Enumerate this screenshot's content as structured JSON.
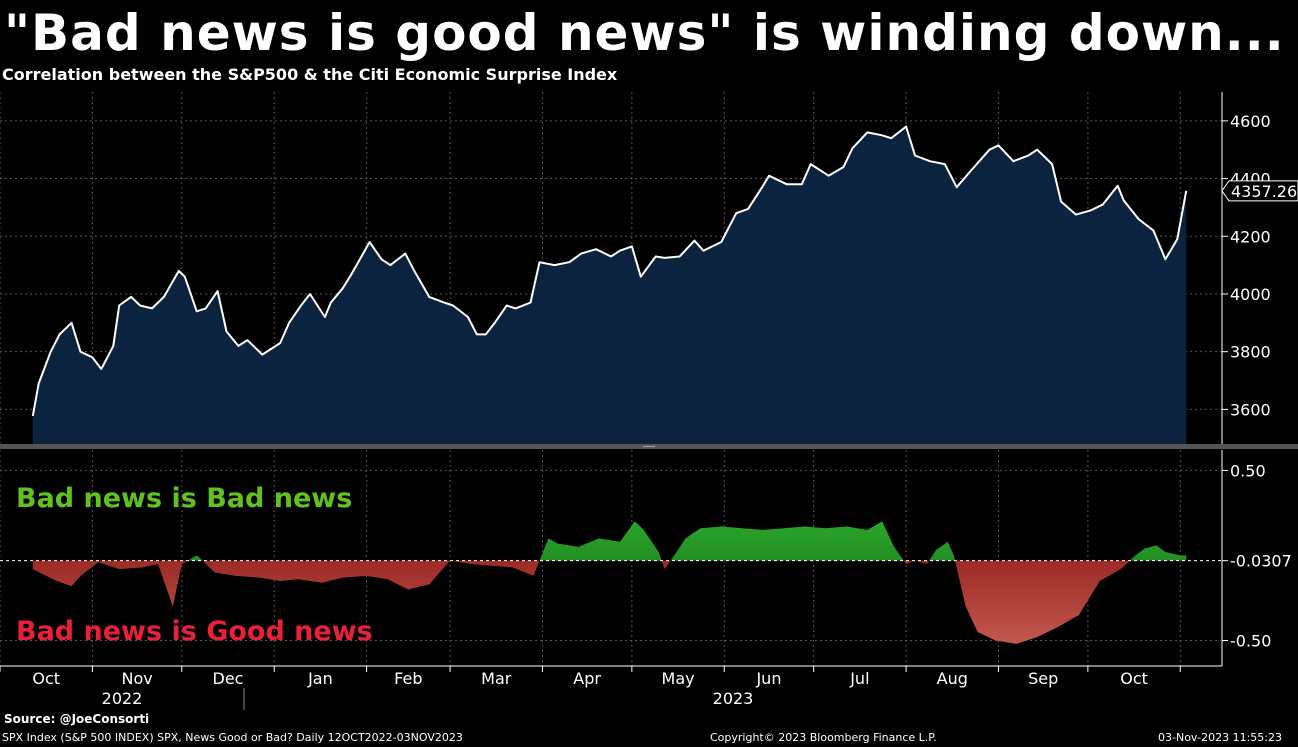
{
  "header": {
    "title": "\"Bad news is good news\" is winding down...",
    "subtitle": "Correlation between the S&P500 & the Citi Economic Surprise Index"
  },
  "footer": {
    "source": "Source: @JoeConsorti",
    "info_left": "SPX Index (S&P 500 INDEX) SPX, News Good or Bad?  Daily 12OCT2022-03NOV2023",
    "copyright": "Copyright© 2023 Bloomberg Finance L.P.",
    "timestamp": "03-Nov-2023 11:55:23"
  },
  "colors": {
    "background": "#000000",
    "area_fill": "#0c2340",
    "line": "#ffffff",
    "positive": "#1e8a1e",
    "negative": "#9a1a14",
    "bad_bad_label": "#5fc21e",
    "bad_good_label": "#e8203a"
  },
  "chart_data": [
    {
      "type": "area",
      "title": "Correlation between the S&P500 & the Citi Economic Surprise Index",
      "series": [
        {
          "name": "SPX",
          "x": [
            "2022-10-12",
            "2022-10-14",
            "2022-10-18",
            "2022-10-21",
            "2022-10-25",
            "2022-10-28",
            "2022-11-01",
            "2022-11-04",
            "2022-11-08",
            "2022-11-10",
            "2022-11-14",
            "2022-11-17",
            "2022-11-21",
            "2022-11-25",
            "2022-11-30",
            "2022-12-02",
            "2022-12-06",
            "2022-12-09",
            "2022-12-13",
            "2022-12-16",
            "2022-12-20",
            "2022-12-23",
            "2022-12-28",
            "2023-01-03",
            "2023-01-06",
            "2023-01-10",
            "2023-01-13",
            "2023-01-18",
            "2023-01-20",
            "2023-01-24",
            "2023-01-27",
            "2023-02-02",
            "2023-02-06",
            "2023-02-09",
            "2023-02-14",
            "2023-02-17",
            "2023-02-22",
            "2023-02-27",
            "2023-03-02",
            "2023-03-07",
            "2023-03-10",
            "2023-03-13",
            "2023-03-16",
            "2023-03-20",
            "2023-03-23",
            "2023-03-28",
            "2023-03-31",
            "2023-04-05",
            "2023-04-10",
            "2023-04-14",
            "2023-04-19",
            "2023-04-24",
            "2023-04-27",
            "2023-05-01",
            "2023-05-04",
            "2023-05-09",
            "2023-05-12",
            "2023-05-17",
            "2023-05-22",
            "2023-05-25",
            "2023-05-31",
            "2023-06-05",
            "2023-06-09",
            "2023-06-14",
            "2023-06-16",
            "2023-06-22",
            "2023-06-27",
            "2023-06-30",
            "2023-07-06",
            "2023-07-11",
            "2023-07-14",
            "2023-07-19",
            "2023-07-24",
            "2023-07-27",
            "2023-08-01",
            "2023-08-04",
            "2023-08-09",
            "2023-08-14",
            "2023-08-18",
            "2023-08-23",
            "2023-08-29",
            "2023-09-01",
            "2023-09-06",
            "2023-09-11",
            "2023-09-14",
            "2023-09-19",
            "2023-09-22",
            "2023-09-27",
            "2023-10-02",
            "2023-10-06",
            "2023-10-11",
            "2023-10-13",
            "2023-10-18",
            "2023-10-23",
            "2023-10-27",
            "2023-10-31",
            "2023-11-03"
          ],
          "values": [
            3577,
            3690,
            3800,
            3860,
            3900,
            3800,
            3780,
            3740,
            3820,
            3960,
            3990,
            3960,
            3950,
            3990,
            4080,
            4060,
            3940,
            3950,
            4010,
            3870,
            3820,
            3840,
            3790,
            3830,
            3900,
            3960,
            4000,
            3920,
            3970,
            4020,
            4070,
            4180,
            4120,
            4100,
            4140,
            4080,
            3990,
            3970,
            3960,
            3920,
            3860,
            3860,
            3900,
            3960,
            3950,
            3970,
            4110,
            4100,
            4110,
            4140,
            4155,
            4130,
            4150,
            4165,
            4060,
            4130,
            4125,
            4130,
            4185,
            4150,
            4180,
            4280,
            4295,
            4375,
            4410,
            4380,
            4380,
            4450,
            4410,
            4440,
            4505,
            4560,
            4550,
            4540,
            4580,
            4480,
            4460,
            4450,
            4370,
            4430,
            4500,
            4515,
            4460,
            4480,
            4500,
            4450,
            4320,
            4275,
            4290,
            4310,
            4375,
            4325,
            4260,
            4220,
            4120,
            4190,
            4357.26
          ]
        }
      ],
      "yticks": [
        3600,
        3800,
        4000,
        4200,
        4400,
        4600
      ],
      "ylim": [
        3480,
        4700
      ],
      "last_value_label": "4357.26",
      "grid": true
    },
    {
      "type": "area",
      "series": [
        {
          "name": "News Good or Bad?",
          "x": [
            "2022-10-12",
            "2022-10-20",
            "2022-10-25",
            "2022-10-28",
            "2022-11-03",
            "2022-11-10",
            "2022-11-18",
            "2022-11-23",
            "2022-11-28",
            "2022-12-01",
            "2022-12-06",
            "2022-12-08",
            "2022-12-12",
            "2022-12-19",
            "2022-12-27",
            "2023-01-03",
            "2023-01-09",
            "2023-01-17",
            "2023-01-24",
            "2023-02-01",
            "2023-02-08",
            "2023-02-15",
            "2023-02-22",
            "2023-03-01",
            "2023-03-08",
            "2023-03-15",
            "2023-03-22",
            "2023-03-29",
            "2023-04-03",
            "2023-04-06",
            "2023-04-13",
            "2023-04-20",
            "2023-04-27",
            "2023-05-02",
            "2023-05-05",
            "2023-05-10",
            "2023-05-12",
            "2023-05-16",
            "2023-05-19",
            "2023-05-24",
            "2023-05-31",
            "2023-06-07",
            "2023-06-14",
            "2023-06-21",
            "2023-06-28",
            "2023-07-05",
            "2023-07-12",
            "2023-07-19",
            "2023-07-24",
            "2023-07-28",
            "2023-08-01",
            "2023-08-04",
            "2023-08-08",
            "2023-08-11",
            "2023-08-15",
            "2023-08-17",
            "2023-08-21",
            "2023-08-25",
            "2023-08-31",
            "2023-09-07",
            "2023-09-14",
            "2023-09-21",
            "2023-09-28",
            "2023-10-05",
            "2023-10-12",
            "2023-10-17",
            "2023-10-20",
            "2023-10-24",
            "2023-10-27",
            "2023-11-01",
            "2023-11-03"
          ],
          "values": [
            -0.08,
            -0.15,
            -0.18,
            -0.12,
            -0.04,
            -0.08,
            -0.07,
            -0.05,
            -0.3,
            -0.05,
            0.0,
            -0.03,
            -0.1,
            -0.12,
            -0.13,
            -0.15,
            -0.14,
            -0.16,
            -0.13,
            -0.12,
            -0.14,
            -0.2,
            -0.17,
            -0.03,
            -0.05,
            -0.06,
            -0.07,
            -0.12,
            0.1,
            0.07,
            0.05,
            0.1,
            0.08,
            0.2,
            0.15,
            0.02,
            -0.08,
            0.02,
            0.1,
            0.16,
            0.17,
            0.16,
            0.15,
            0.16,
            0.17,
            0.16,
            0.17,
            0.15,
            0.2,
            0.05,
            -0.05,
            -0.03,
            -0.05,
            0.03,
            0.08,
            0.0,
            -0.3,
            -0.45,
            -0.5,
            -0.52,
            -0.48,
            -0.42,
            -0.35,
            -0.15,
            -0.08,
            0.0,
            0.04,
            0.06,
            0.02,
            0.0,
            0.0
          ]
        }
      ],
      "reference_value": -0.0307,
      "yticks": [
        0.5,
        -0.5
      ],
      "ylim": [
        -0.65,
        0.62
      ],
      "annotations": [
        "Bad news is Bad news",
        "Bad news is Good news"
      ],
      "grid": true
    }
  ],
  "x_axis": {
    "months": [
      "Oct",
      "Nov",
      "Dec",
      "Jan",
      "Feb",
      "Mar",
      "Apr",
      "May",
      "Jun",
      "Jul",
      "Aug",
      "Sep",
      "Oct"
    ],
    "year_labels": [
      "2022",
      "2023"
    ]
  }
}
